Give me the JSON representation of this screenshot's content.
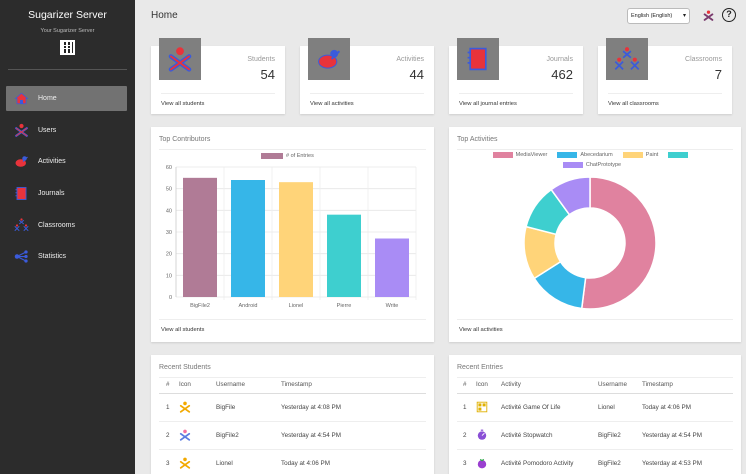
{
  "sidebar": {
    "title": "Sugarizer Server",
    "subtitle": "Your Sugarizer Server",
    "items": [
      {
        "label": "Home",
        "icon": "home-icon"
      },
      {
        "label": "Users",
        "icon": "user-icon"
      },
      {
        "label": "Activities",
        "icon": "activities-icon"
      },
      {
        "label": "Journals",
        "icon": "journal-icon"
      },
      {
        "label": "Classrooms",
        "icon": "classroom-icon"
      },
      {
        "label": "Statistics",
        "icon": "statistics-icon"
      }
    ]
  },
  "header": {
    "title": "Home",
    "language": "English (English)"
  },
  "stats": [
    {
      "label": "Students",
      "value": "54",
      "link": "View all students"
    },
    {
      "label": "Activities",
      "value": "44",
      "link": "View all activities"
    },
    {
      "label": "Journals",
      "value": "462",
      "link": "View all journal entries"
    },
    {
      "label": "Classrooms",
      "value": "7",
      "link": "View all classrooms"
    }
  ],
  "top_contributors": {
    "title": "Top Contributors",
    "link": "View all students"
  },
  "top_activities": {
    "title": "Top Activities",
    "link": "View all activities"
  },
  "chart_data": [
    {
      "type": "bar",
      "title": "Top Contributors",
      "legend": [
        "# of Entries"
      ],
      "categories": [
        "BigFile2",
        "Android",
        "Lionel",
        "Pierre",
        "Write"
      ],
      "values": [
        55,
        54,
        53,
        38,
        27
      ],
      "colors": [
        "#b07b96",
        "#36b6e8",
        "#ffd479",
        "#3ecfcf",
        "#a98cf5"
      ],
      "ylim": [
        0,
        60
      ],
      "yticks": [
        0,
        10,
        20,
        30,
        40,
        50,
        60
      ]
    },
    {
      "type": "pie",
      "title": "Top Activities",
      "labels": [
        "MediaViewer",
        "Abecedarium",
        "Paint",
        "",
        "ChatPrototype"
      ],
      "values": [
        52,
        14,
        13,
        11,
        10
      ],
      "colors": [
        "#e0829f",
        "#36b6e8",
        "#ffd479",
        "#3ecfcf",
        "#a98cf5"
      ]
    }
  ],
  "recent_students": {
    "title": "Recent Students",
    "columns": [
      "#",
      "Icon",
      "Username",
      "Timestamp"
    ],
    "rows": [
      {
        "n": "1",
        "icon": "xo-orange-icon",
        "username": "BigFile",
        "timestamp": "Yesterday at 4:08 PM"
      },
      {
        "n": "2",
        "icon": "xo-blue-icon",
        "username": "BigFile2",
        "timestamp": "Yesterday at 4:54 PM"
      },
      {
        "n": "3",
        "icon": "xo-orange-icon",
        "username": "Lionel",
        "timestamp": "Today at 4:06 PM"
      }
    ]
  },
  "recent_entries": {
    "title": "Recent Entries",
    "columns": [
      "#",
      "Icon",
      "Activity",
      "Username",
      "Timestamp"
    ],
    "rows": [
      {
        "n": "1",
        "icon": "game-of-life-icon",
        "activity": "Activité Game Of Life",
        "username": "Lionel",
        "timestamp": "Today at 4:06 PM"
      },
      {
        "n": "2",
        "icon": "stopwatch-icon",
        "activity": "Activité Stopwatch",
        "username": "BigFile2",
        "timestamp": "Yesterday at 4:54 PM"
      },
      {
        "n": "3",
        "icon": "pomodoro-icon",
        "activity": "Activité Pomodoro Activity",
        "username": "BigFile2",
        "timestamp": "Yesterday at 4:53 PM"
      }
    ]
  },
  "colors": {
    "sidebar_bg": "#2c2c2c",
    "accent_red": "#e8333b",
    "accent_blue": "#3b5bdb"
  }
}
